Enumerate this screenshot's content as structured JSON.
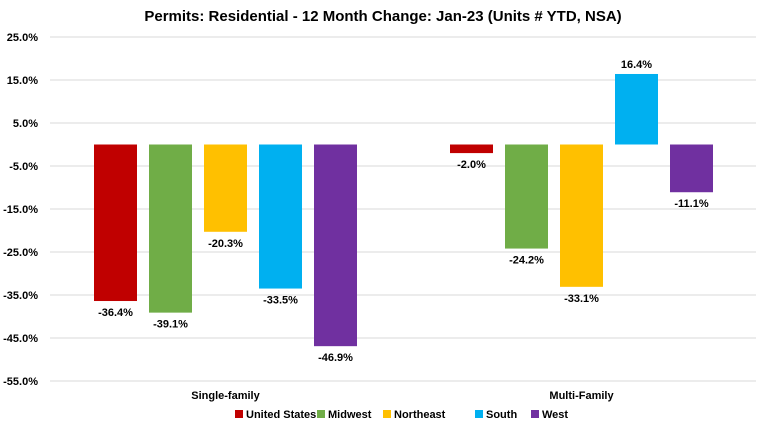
{
  "chart_data": {
    "type": "bar",
    "title": "Permits: Residential - 12 Month Change:  Jan-23 (Units # YTD, NSA)",
    "categories": [
      "Single-family",
      "Multi-Family"
    ],
    "series": [
      {
        "name": "United States",
        "color": "#c00000",
        "values": [
          -36.4,
          -2.0
        ]
      },
      {
        "name": "Midwest",
        "color": "#70ad47",
        "values": [
          -39.1,
          -24.2
        ]
      },
      {
        "name": "Northeast",
        "color": "#ffc000",
        "values": [
          -20.3,
          -33.1
        ]
      },
      {
        "name": "South",
        "color": "#00b0f0",
        "values": [
          -33.5,
          16.4
        ]
      },
      {
        "name": "West",
        "color": "#7030a0",
        "values": [
          -46.9,
          -11.1
        ]
      }
    ],
    "ylim": [
      -55,
      25
    ],
    "yticks": [
      "25.0%",
      "15.0%",
      "5.0%",
      "-5.0%",
      "-15.0%",
      "-25.0%",
      "-35.0%",
      "-45.0%",
      "-55.0%"
    ],
    "ytick_values": [
      25,
      15,
      5,
      -5,
      -15,
      -25,
      -35,
      -45,
      -55
    ],
    "data_labels": [
      [
        "-36.4%",
        "-2.0%"
      ],
      [
        "-39.1%",
        "-24.2%"
      ],
      [
        "-20.3%",
        "-33.1%"
      ],
      [
        "-33.5%",
        "16.4%"
      ],
      [
        "-46.9%",
        "-11.1%"
      ]
    ],
    "grid": true,
    "legend": "bottom"
  }
}
